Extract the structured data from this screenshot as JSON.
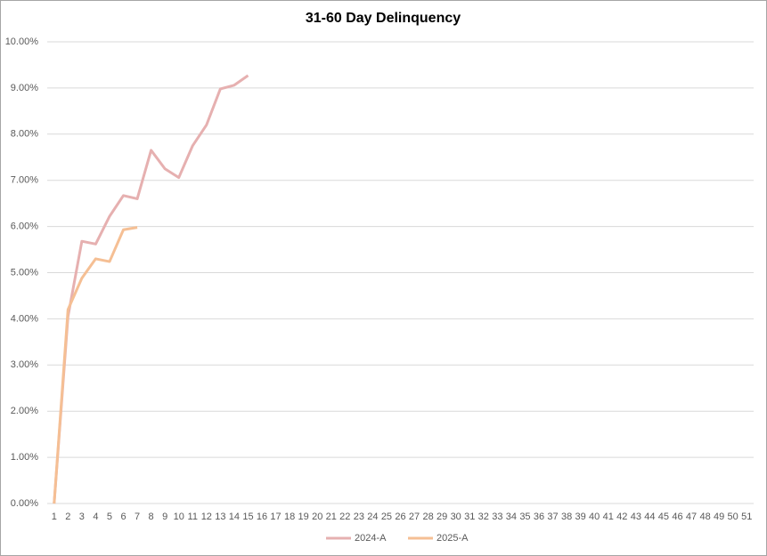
{
  "chart_data": {
    "type": "line",
    "title": "31-60 Day Delinquency",
    "categories": [
      1,
      2,
      3,
      4,
      5,
      6,
      7,
      8,
      9,
      10,
      11,
      12,
      13,
      14,
      15,
      16,
      17,
      18,
      19,
      20,
      21,
      22,
      23,
      24,
      25,
      26,
      27,
      28,
      29,
      30,
      31,
      32,
      33,
      34,
      35,
      36,
      37,
      38,
      39,
      40,
      41,
      42,
      43,
      44,
      45,
      46,
      47,
      48,
      49,
      50,
      51
    ],
    "series": [
      {
        "name": "2024-A",
        "color": "#e6b0b0",
        "values": [
          0,
          4.05,
          5.68,
          5.62,
          6.22,
          6.67,
          6.6,
          7.65,
          7.25,
          7.06,
          7.75,
          8.2,
          8.98,
          9.06,
          9.27,
          null,
          null,
          null,
          null,
          null,
          null,
          null,
          null,
          null,
          null,
          null,
          null,
          null,
          null,
          null,
          null,
          null,
          null,
          null,
          null,
          null,
          null,
          null,
          null,
          null,
          null,
          null,
          null,
          null,
          null,
          null,
          null,
          null,
          null,
          null,
          null
        ]
      },
      {
        "name": "2025-A",
        "color": "#f5bf94",
        "values": [
          0,
          4.2,
          4.88,
          5.3,
          5.24,
          5.93,
          5.98,
          null,
          null,
          null,
          null,
          null,
          null,
          null,
          null,
          null,
          null,
          null,
          null,
          null,
          null,
          null,
          null,
          null,
          null,
          null,
          null,
          null,
          null,
          null,
          null,
          null,
          null,
          null,
          null,
          null,
          null,
          null,
          null,
          null,
          null,
          null,
          null,
          null,
          null,
          null,
          null,
          null,
          null,
          null,
          null
        ]
      }
    ],
    "ylim": [
      0,
      10
    ],
    "yticks": [
      {
        "value": 0,
        "label": "0.00%"
      },
      {
        "value": 1,
        "label": "1.00%"
      },
      {
        "value": 2,
        "label": "2.00%"
      },
      {
        "value": 3,
        "label": "3.00%"
      },
      {
        "value": 4,
        "label": "4.00%"
      },
      {
        "value": 5,
        "label": "5.00%"
      },
      {
        "value": 6,
        "label": "6.00%"
      },
      {
        "value": 7,
        "label": "7.00%"
      },
      {
        "value": 8,
        "label": "8.00%"
      },
      {
        "value": 9,
        "label": "9.00%"
      },
      {
        "value": 10,
        "label": "10.00%"
      }
    ],
    "grid": true,
    "legend": "bottom"
  }
}
